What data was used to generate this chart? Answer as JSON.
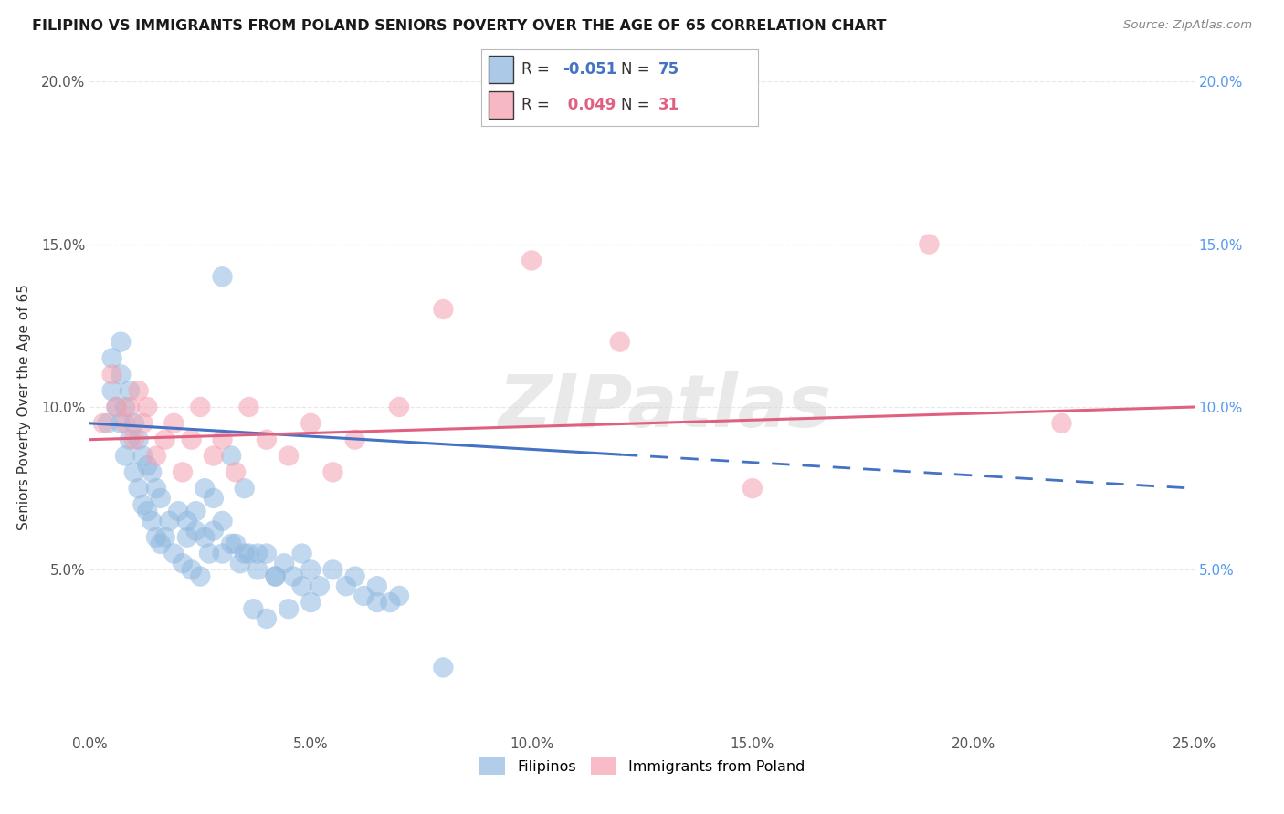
{
  "title": "FILIPINO VS IMMIGRANTS FROM POLAND SENIORS POVERTY OVER THE AGE OF 65 CORRELATION CHART",
  "source": "Source: ZipAtlas.com",
  "ylabel": "Seniors Poverty Over the Age of 65",
  "xlim": [
    0.0,
    0.25
  ],
  "ylim": [
    0.0,
    0.2
  ],
  "xticks": [
    0.0,
    0.05,
    0.1,
    0.15,
    0.2,
    0.25
  ],
  "yticks": [
    0.0,
    0.05,
    0.1,
    0.15,
    0.2
  ],
  "xtick_labels": [
    "0.0%",
    "5.0%",
    "10.0%",
    "15.0%",
    "20.0%",
    "25.0%"
  ],
  "ytick_labels_left": [
    "",
    "5.0%",
    "10.0%",
    "15.0%",
    "20.0%"
  ],
  "ytick_labels_right": [
    "",
    "5.0%",
    "10.0%",
    "15.0%",
    "20.0%"
  ],
  "filipino_color": "#90b8e0",
  "poland_color": "#f4a0b0",
  "filipino_line_color": "#4472c4",
  "poland_line_color": "#e06080",
  "filipino_R": -0.051,
  "filipino_N": 75,
  "poland_R": 0.049,
  "poland_N": 31,
  "legend_label_1": "Filipinos",
  "legend_label_2": "Immigrants from Poland",
  "watermark": "ZIPatlas",
  "background_color": "#ffffff",
  "grid_color": "#e8e8e8",
  "filipino_x": [
    0.004,
    0.005,
    0.005,
    0.006,
    0.007,
    0.007,
    0.007,
    0.008,
    0.008,
    0.009,
    0.009,
    0.01,
    0.01,
    0.011,
    0.011,
    0.012,
    0.012,
    0.013,
    0.013,
    0.014,
    0.014,
    0.015,
    0.015,
    0.016,
    0.016,
    0.017,
    0.018,
    0.019,
    0.02,
    0.021,
    0.022,
    0.023,
    0.024,
    0.025,
    0.026,
    0.027,
    0.028,
    0.03,
    0.032,
    0.034,
    0.036,
    0.038,
    0.04,
    0.042,
    0.044,
    0.046,
    0.048,
    0.05,
    0.052,
    0.055,
    0.058,
    0.06,
    0.062,
    0.065,
    0.068,
    0.07,
    0.03,
    0.032,
    0.035,
    0.037,
    0.038,
    0.04,
    0.042,
    0.045,
    0.048,
    0.05,
    0.022,
    0.024,
    0.026,
    0.028,
    0.03,
    0.033,
    0.035,
    0.065,
    0.08
  ],
  "filipino_y": [
    0.095,
    0.105,
    0.115,
    0.1,
    0.095,
    0.11,
    0.12,
    0.085,
    0.1,
    0.09,
    0.105,
    0.08,
    0.095,
    0.075,
    0.09,
    0.07,
    0.085,
    0.068,
    0.082,
    0.065,
    0.08,
    0.06,
    0.075,
    0.058,
    0.072,
    0.06,
    0.065,
    0.055,
    0.068,
    0.052,
    0.065,
    0.05,
    0.062,
    0.048,
    0.06,
    0.055,
    0.062,
    0.055,
    0.058,
    0.052,
    0.055,
    0.05,
    0.055,
    0.048,
    0.052,
    0.048,
    0.055,
    0.05,
    0.045,
    0.05,
    0.045,
    0.048,
    0.042,
    0.045,
    0.04,
    0.042,
    0.14,
    0.085,
    0.075,
    0.038,
    0.055,
    0.035,
    0.048,
    0.038,
    0.045,
    0.04,
    0.06,
    0.068,
    0.075,
    0.072,
    0.065,
    0.058,
    0.055,
    0.04,
    0.02
  ],
  "poland_x": [
    0.003,
    0.005,
    0.006,
    0.008,
    0.009,
    0.01,
    0.011,
    0.012,
    0.013,
    0.015,
    0.017,
    0.019,
    0.021,
    0.023,
    0.025,
    0.028,
    0.03,
    0.033,
    0.036,
    0.04,
    0.045,
    0.05,
    0.055,
    0.06,
    0.07,
    0.08,
    0.1,
    0.12,
    0.15,
    0.19,
    0.22
  ],
  "poland_y": [
    0.095,
    0.11,
    0.1,
    0.095,
    0.1,
    0.09,
    0.105,
    0.095,
    0.1,
    0.085,
    0.09,
    0.095,
    0.08,
    0.09,
    0.1,
    0.085,
    0.09,
    0.08,
    0.1,
    0.09,
    0.085,
    0.095,
    0.08,
    0.09,
    0.1,
    0.13,
    0.145,
    0.12,
    0.075,
    0.15,
    0.095
  ]
}
